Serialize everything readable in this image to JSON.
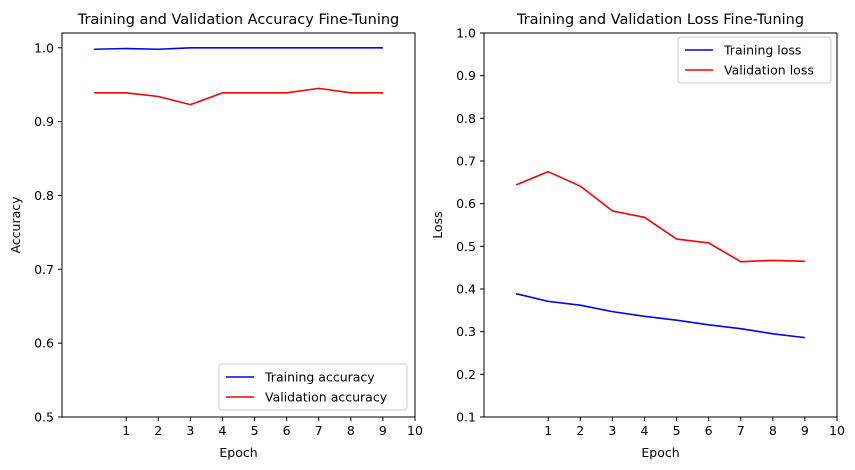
{
  "chart_data": [
    {
      "type": "line",
      "title": "Training and Validation Accuracy Fine-Tuning",
      "xlabel": "Epoch",
      "ylabel": "Accuracy",
      "xlim": [
        -1,
        10
      ],
      "ylim": [
        0.5,
        1.02
      ],
      "xticks": [
        1,
        2,
        3,
        4,
        5,
        6,
        7,
        8,
        9,
        10
      ],
      "yticks": [
        0.5,
        0.6,
        0.7,
        0.8,
        0.9,
        1.0
      ],
      "ytick_labels": [
        "0.5",
        "0.6",
        "0.7",
        "0.8",
        "0.9",
        "1.0"
      ],
      "grid": false,
      "legend_position": "lower-right",
      "x": [
        0,
        1,
        2,
        3,
        4,
        5,
        6,
        7,
        8,
        9
      ],
      "series": [
        {
          "name": "Training accuracy",
          "color": "#0000ff",
          "values": [
            0.998,
            0.999,
            0.998,
            1.0,
            1.0,
            1.0,
            1.0,
            1.0,
            1.0,
            1.0
          ]
        },
        {
          "name": "Validation accuracy",
          "color": "#ff0000",
          "values": [
            0.939,
            0.939,
            0.934,
            0.923,
            0.939,
            0.939,
            0.939,
            0.945,
            0.939,
            0.939
          ]
        }
      ]
    },
    {
      "type": "line",
      "title": "Training and Validation Loss Fine-Tuning",
      "xlabel": "Epoch",
      "ylabel": "Loss",
      "xlim": [
        -1,
        10
      ],
      "ylim": [
        0.1,
        1.0
      ],
      "xticks": [
        1,
        2,
        3,
        4,
        5,
        6,
        7,
        8,
        9,
        10
      ],
      "yticks": [
        0.1,
        0.2,
        0.3,
        0.4,
        0.5,
        0.6,
        0.7,
        0.8,
        0.9,
        1.0
      ],
      "ytick_labels": [
        "0.1",
        "0.2",
        "0.3",
        "0.4",
        "0.5",
        "0.6",
        "0.7",
        "0.8",
        "0.9",
        "1.0"
      ],
      "grid": false,
      "legend_position": "upper-right",
      "x": [
        0,
        1,
        2,
        3,
        4,
        5,
        6,
        7,
        8,
        9
      ],
      "series": [
        {
          "name": "Training loss",
          "color": "#0000ff",
          "values": [
            0.389,
            0.371,
            0.362,
            0.347,
            0.336,
            0.327,
            0.316,
            0.307,
            0.295,
            0.286
          ]
        },
        {
          "name": "Validation loss",
          "color": "#ff0000",
          "values": [
            0.644,
            0.675,
            0.641,
            0.583,
            0.568,
            0.517,
            0.508,
            0.464,
            0.467,
            0.465
          ]
        }
      ]
    }
  ]
}
